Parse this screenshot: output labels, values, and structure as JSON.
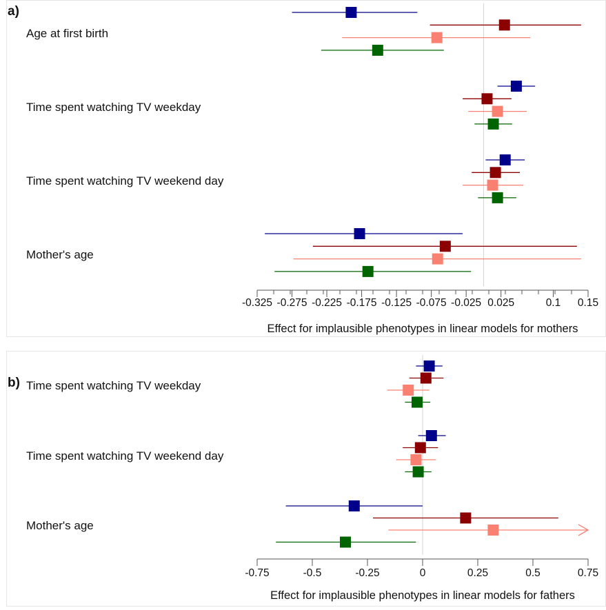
{
  "colors": {
    "series": [
      "#00008b",
      "#8b0000",
      "#fa8072",
      "#006400"
    ],
    "axis": "#555555",
    "zero_line": "#d3d3d3"
  },
  "chart_data": [
    {
      "type": "forest",
      "panel_label": "a)",
      "xlabel": "Effect for implausible phenotypes in linear models for mothers",
      "xlim": [
        -0.325,
        0.15
      ],
      "ticks": [
        -0.325,
        -0.275,
        -0.225,
        -0.175,
        -0.125,
        -0.075,
        -0.025,
        0.025,
        0.1,
        0.15
      ],
      "tick_labels": [
        "-0.325",
        "-0.275",
        "-0.225",
        "-0.175",
        "-0.125",
        "-0.075",
        "-0.025",
        "0.025",
        "0.1",
        "0.15"
      ],
      "reference_x": 0,
      "groups": [
        {
          "label": "Age at first birth",
          "estimates": [
            {
              "est": -0.19,
              "lo": -0.275,
              "hi": -0.095
            },
            {
              "est": 0.03,
              "lo": -0.077,
              "hi": 0.14
            },
            {
              "est": -0.067,
              "lo": -0.203,
              "hi": 0.067
            },
            {
              "est": -0.152,
              "lo": -0.233,
              "hi": -0.057
            }
          ]
        },
        {
          "label": "Time spent watching TV weekday",
          "estimates": [
            {
              "est": 0.047,
              "lo": 0.02,
              "hi": 0.074
            },
            {
              "est": 0.005,
              "lo": -0.03,
              "hi": 0.04
            },
            {
              "est": 0.02,
              "lo": -0.022,
              "hi": 0.062
            },
            {
              "est": 0.014,
              "lo": -0.013,
              "hi": 0.041
            }
          ]
        },
        {
          "label": "Time spent watching TV weekend day",
          "estimates": [
            {
              "est": 0.031,
              "lo": 0.003,
              "hi": 0.059
            },
            {
              "est": 0.017,
              "lo": -0.017,
              "hi": 0.052
            },
            {
              "est": 0.013,
              "lo": -0.03,
              "hi": 0.057
            },
            {
              "est": 0.02,
              "lo": -0.008,
              "hi": 0.047
            }
          ]
        },
        {
          "label": "Mother's age",
          "estimates": [
            {
              "est": -0.178,
              "lo": -0.314,
              "hi": -0.03
            },
            {
              "est": -0.055,
              "lo": -0.245,
              "hi": 0.134
            },
            {
              "est": -0.066,
              "lo": -0.273,
              "hi": 0.14
            },
            {
              "est": -0.166,
              "lo": -0.3,
              "hi": -0.018
            }
          ]
        }
      ]
    },
    {
      "type": "forest",
      "panel_label": "b)",
      "xlabel": "Effect for implausible phenotypes in linear models for fathers",
      "xlim": [
        -0.75,
        0.75
      ],
      "ticks": [
        -0.75,
        -0.5,
        -0.25,
        0,
        0.25,
        0.5,
        0.75
      ],
      "tick_labels": [
        "-0.75",
        "-0.5",
        "-0.25",
        "0",
        "0.25",
        "0.5",
        "0.75"
      ],
      "reference_x": 0,
      "groups": [
        {
          "label": "Time spent watching TV weekday",
          "estimates": [
            {
              "est": 0.03,
              "lo": -0.03,
              "hi": 0.09
            },
            {
              "est": 0.015,
              "lo": -0.06,
              "hi": 0.095
            },
            {
              "est": -0.065,
              "lo": -0.16,
              "hi": 0.03
            },
            {
              "est": -0.025,
              "lo": -0.08,
              "hi": 0.035
            }
          ]
        },
        {
          "label": "Time spent watching TV weekend day",
          "estimates": [
            {
              "est": 0.04,
              "lo": -0.02,
              "hi": 0.105
            },
            {
              "est": -0.01,
              "lo": -0.09,
              "hi": 0.07
            },
            {
              "est": -0.03,
              "lo": -0.12,
              "hi": 0.06
            },
            {
              "est": -0.02,
              "lo": -0.08,
              "hi": 0.04
            }
          ]
        },
        {
          "label": "Mother's age",
          "estimates": [
            {
              "est": -0.31,
              "lo": -0.62,
              "hi": 0
            },
            {
              "est": 0.195,
              "lo": -0.225,
              "hi": 0.615
            },
            {
              "est": 0.32,
              "lo": -0.155,
              "hi": 0.75,
              "arrow": true
            },
            {
              "est": -0.35,
              "lo": -0.665,
              "hi": -0.03
            }
          ]
        }
      ]
    }
  ]
}
